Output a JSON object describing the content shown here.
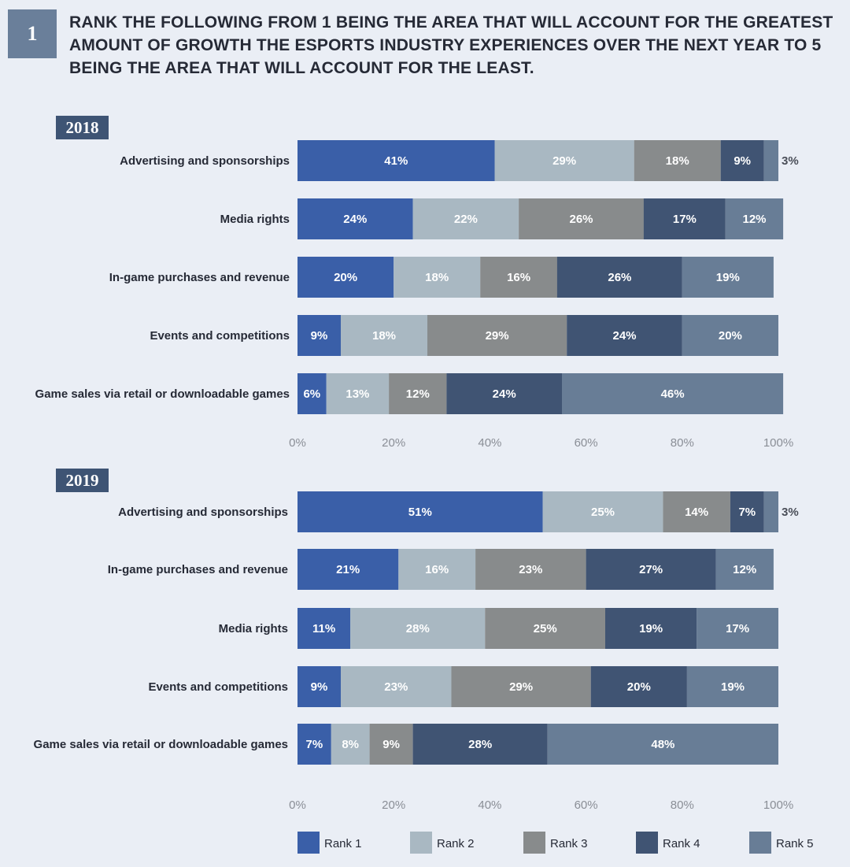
{
  "question": {
    "number": "1",
    "text": "RANK THE FOLLOWING FROM 1 BEING THE AREA THAT WILL ACCOUNT FOR THE GREATEST AMOUNT OF GROWTH THE ESPORTS INDUSTRY EXPERIENCES OVER THE NEXT YEAR TO 5 BEING THE AREA THAT WILL ACCOUNT FOR THE LEAST."
  },
  "colors": {
    "rank1": "#3a5fa8",
    "rank2": "#a9b8c2",
    "rank3": "#888b8c",
    "rank4": "#405473",
    "rank5": "#687d96"
  },
  "legend": [
    "Rank 1",
    "Rank 2",
    "Rank 3",
    "Rank 4",
    "Rank 5"
  ],
  "chart_data": [
    {
      "type": "bar",
      "orientation": "horizontal",
      "stacked": true,
      "title": "2018",
      "categories": [
        "Advertising and sponsorships",
        "Media rights",
        "In-game purchases and revenue",
        "Events and competitions",
        "Game sales via retail or downloadable games"
      ],
      "series": [
        {
          "name": "Rank 1",
          "values": [
            41,
            24,
            20,
            9,
            6
          ]
        },
        {
          "name": "Rank 2",
          "values": [
            29,
            22,
            18,
            18,
            13
          ]
        },
        {
          "name": "Rank 3",
          "values": [
            18,
            26,
            16,
            29,
            12
          ]
        },
        {
          "name": "Rank 4",
          "values": [
            9,
            17,
            26,
            24,
            24
          ]
        },
        {
          "name": "Rank 5",
          "values": [
            3,
            12,
            19,
            20,
            46
          ]
        }
      ],
      "x_ticks": [
        "0%",
        "20%",
        "40%",
        "60%",
        "80%",
        "100%"
      ],
      "xlim": [
        0,
        100
      ],
      "value_suffix": "%"
    },
    {
      "type": "bar",
      "orientation": "horizontal",
      "stacked": true,
      "title": "2019",
      "categories": [
        "Advertising and sponsorships",
        "In-game purchases and revenue",
        "Media rights",
        "Events and competitions",
        "Game sales via retail or downloadable games"
      ],
      "series": [
        {
          "name": "Rank 1",
          "values": [
            51,
            21,
            11,
            9,
            7
          ]
        },
        {
          "name": "Rank 2",
          "values": [
            25,
            16,
            28,
            23,
            8
          ]
        },
        {
          "name": "Rank 3",
          "values": [
            14,
            23,
            25,
            29,
            9
          ]
        },
        {
          "name": "Rank 4",
          "values": [
            7,
            27,
            19,
            20,
            28
          ]
        },
        {
          "name": "Rank 5",
          "values": [
            3,
            12,
            17,
            19,
            48
          ]
        }
      ],
      "x_ticks": [
        "0%",
        "20%",
        "40%",
        "60%",
        "80%",
        "100%"
      ],
      "xlim": [
        0,
        100
      ],
      "value_suffix": "%"
    }
  ]
}
